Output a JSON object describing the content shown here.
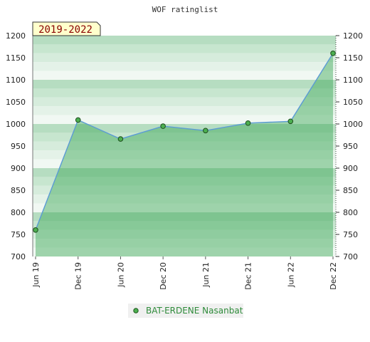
{
  "chart_data": {
    "type": "line",
    "title": "WOF ratinglist",
    "period_badge": "2019-2022",
    "categories": [
      "Jun 19",
      "Dec 19",
      "Jun 20",
      "Dec 20",
      "Jun 21",
      "Dec 21",
      "Jun 22",
      "Dec 22"
    ],
    "series": [
      {
        "name": "BAT-ERDENE Nasanbat",
        "values": [
          760,
          1009,
          966,
          995,
          985,
          1002,
          1006,
          1160
        ]
      }
    ],
    "ylim": [
      700,
      1200
    ],
    "yticks": [
      700,
      750,
      800,
      850,
      900,
      950,
      1000,
      1050,
      1100,
      1150,
      1200
    ],
    "grid": true,
    "legend_position": "bottom-center",
    "colors": {
      "line": "#5b9bd5",
      "marker": "#4caf50",
      "area_fill": "#3aa655",
      "band_dark": "#b9dfc4",
      "band_light": "#eef7f1",
      "badge_bg": "#ffffcc"
    }
  }
}
